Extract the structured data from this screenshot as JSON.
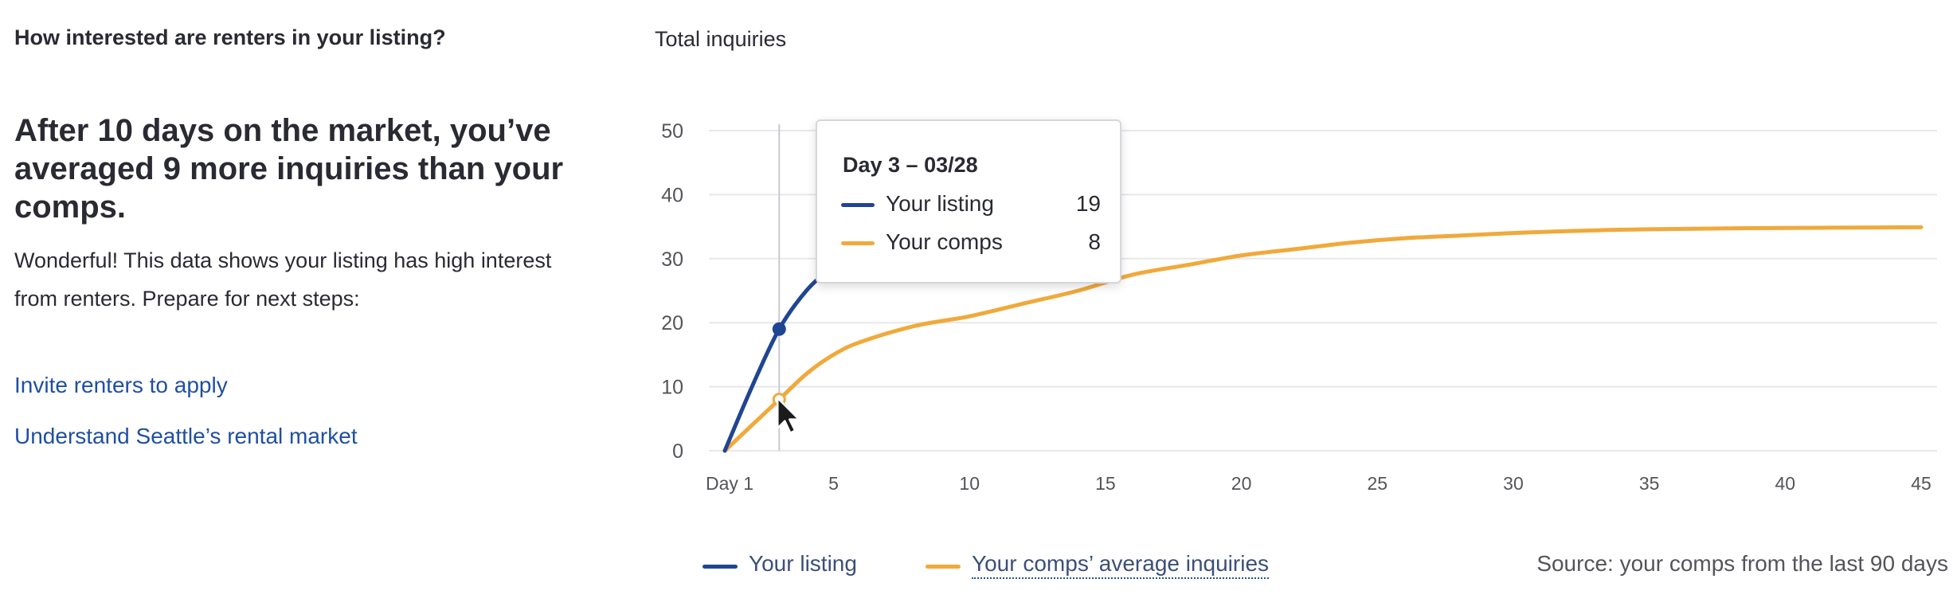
{
  "left": {
    "question": "How interested are renters in your listing?",
    "headline": "After 10 days on the market, you’ve averaged 9 more inquiries than your comps.",
    "body": "Wonderful! This data shows your listing has high interest from renters. Prepare for next steps:",
    "links": [
      "Invite renters to apply",
      "Understand Seattle’s rental market"
    ]
  },
  "chart_title": "Total inquiries",
  "tooltip": {
    "title": "Day 3 – 03/28",
    "rows": [
      {
        "label": "Your listing",
        "value": "19"
      },
      {
        "label": "Your comps",
        "value": "8"
      }
    ]
  },
  "legend": [
    "Your listing",
    "Your comps’ average inquiries"
  ],
  "source": "Source: your comps from the last 90 days",
  "colors": {
    "listing": "#1f4593",
    "comps": "#f0a93b",
    "link": "#1f4fa3",
    "grid": "#e8e8ec"
  },
  "icons": {
    "cursor": "mouse-pointer-icon"
  },
  "chart_data": {
    "type": "line",
    "title": "Total inquiries",
    "xlabel": "",
    "ylabel": "",
    "xlim": [
      1,
      45
    ],
    "ylim": [
      0,
      50
    ],
    "x_ticks": [
      1,
      5,
      10,
      15,
      20,
      25,
      30,
      35,
      40,
      45
    ],
    "x_tick_labels": [
      "Day 1",
      "5",
      "10",
      "15",
      "20",
      "25",
      "30",
      "35",
      "40",
      "45"
    ],
    "y_ticks": [
      0,
      10,
      20,
      30,
      40,
      50
    ],
    "grid": true,
    "legend_position": "bottom-left",
    "hover_x": 3,
    "series": [
      {
        "name": "Your listing",
        "x": [
          1,
          2,
          3,
          4,
          5
        ],
        "y": [
          0,
          10,
          19,
          25,
          29
        ]
      },
      {
        "name": "Your comps",
        "x": [
          1,
          2,
          3,
          4,
          5,
          6,
          8,
          10,
          12,
          14,
          16,
          18,
          20,
          22,
          24,
          26,
          28,
          30,
          32,
          35,
          40,
          45
        ],
        "y": [
          0,
          4,
          8,
          12,
          15,
          17,
          19.5,
          21,
          23,
          25,
          27.5,
          29,
          30.5,
          31.5,
          32.5,
          33.2,
          33.6,
          34,
          34.3,
          34.6,
          34.8,
          34.9
        ]
      }
    ]
  }
}
